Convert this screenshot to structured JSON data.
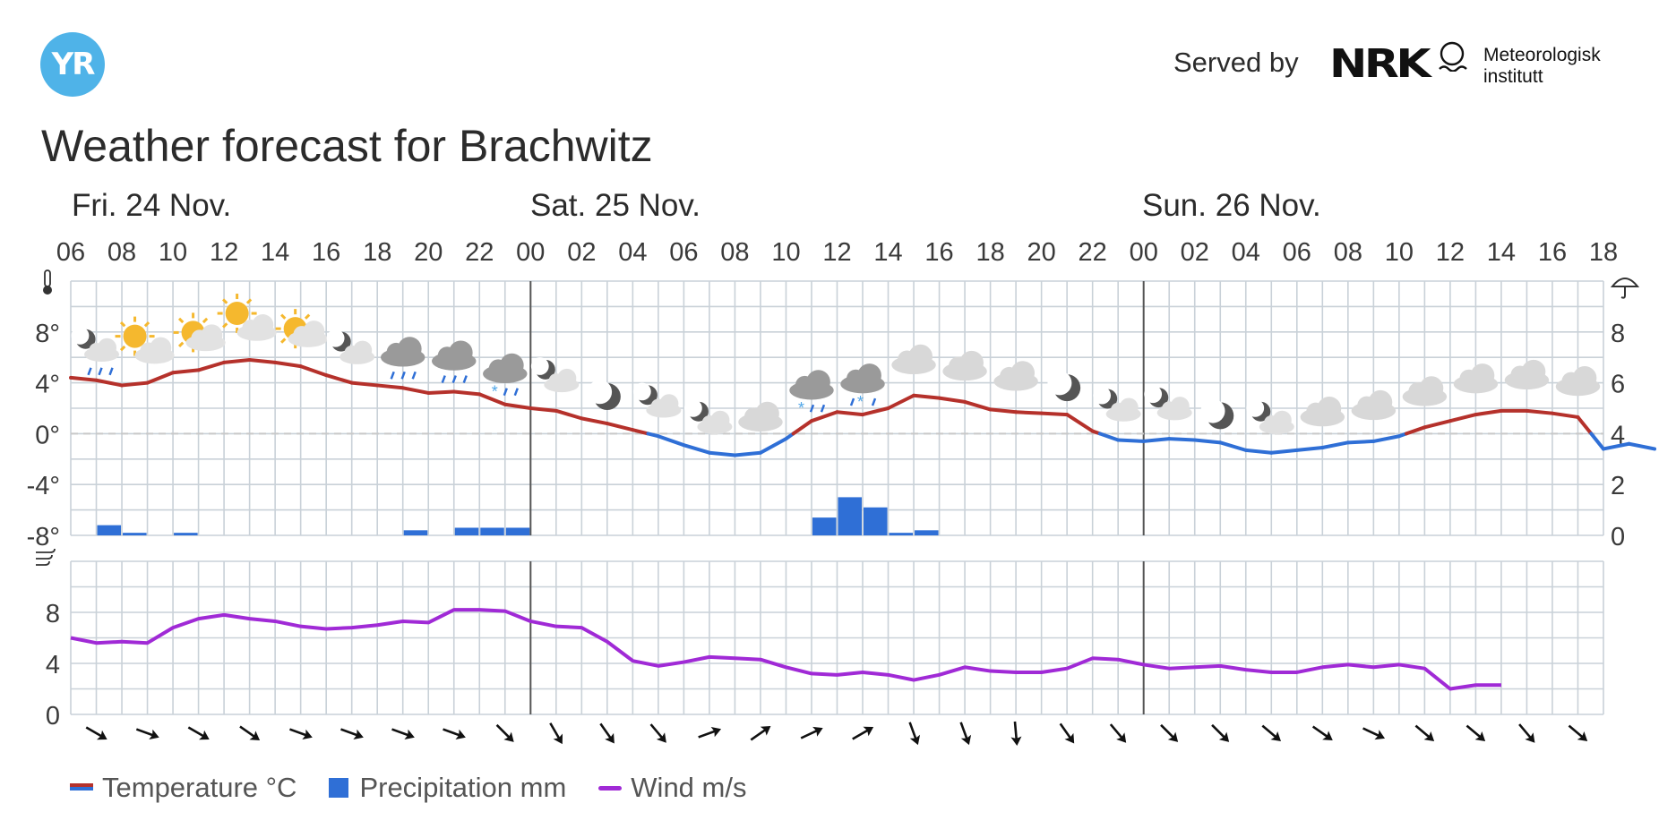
{
  "header": {
    "logo_text": "YR",
    "served_by": "Served by",
    "nrk_text": "NRK",
    "met_line1": "Meteorologisk",
    "met_line2": "institutt"
  },
  "title": "Weather forecast for Brachwitz",
  "days": [
    "Fri. 24 Nov.",
    "Sat. 25 Nov.",
    "Sun. 26 Nov."
  ],
  "legend": {
    "temperature": "Temperature °C",
    "precipitation": "Precipitation mm",
    "wind": "Wind m/s"
  },
  "colors": {
    "temp_warm": "#b5312b",
    "temp_cold": "#2f6fd6",
    "precip": "#2f6fd6",
    "wind": "#a02ad6",
    "grid": "#c9d1d8",
    "logo": "#4fb3e8"
  },
  "chart_data": [
    {
      "type": "line",
      "name": "temperature",
      "x_start": "Fri 06:00",
      "x_step_hours": 1,
      "x_tick_labels": [
        "06",
        "08",
        "10",
        "12",
        "14",
        "16",
        "18",
        "20",
        "22",
        "00",
        "02",
        "04",
        "06",
        "08",
        "10",
        "12",
        "14",
        "16",
        "18",
        "20",
        "22",
        "00",
        "02",
        "04",
        "06",
        "08",
        "10",
        "12",
        "14",
        "16",
        "18"
      ],
      "ylim": [
        -8,
        12
      ],
      "yticks": [
        "8°",
        "4°",
        "0°",
        "-4°",
        "-8°"
      ],
      "series": [
        {
          "name": "Temperature °C",
          "values": [
            4.4,
            4.2,
            3.8,
            4.0,
            4.8,
            5.0,
            5.6,
            5.8,
            5.6,
            5.3,
            4.6,
            4.0,
            3.8,
            3.6,
            3.2,
            3.3,
            3.1,
            2.3,
            2.0,
            1.8,
            1.2,
            0.8,
            0.3,
            -0.2,
            -0.9,
            -1.5,
            -1.7,
            -1.5,
            -0.4,
            1.0,
            1.7,
            1.5,
            2.0,
            3.0,
            2.8,
            2.5,
            1.9,
            1.7,
            1.6,
            1.5,
            0.2,
            -0.5,
            -0.6,
            -0.4,
            -0.5,
            -0.7,
            -1.3,
            -1.5,
            -1.3,
            -1.1,
            -0.7,
            -0.6,
            -0.2,
            0.5,
            1.0,
            1.5,
            1.8,
            1.8,
            1.6,
            1.3,
            -1.2,
            -0.8,
            -1.2
          ]
        }
      ]
    },
    {
      "type": "bar",
      "name": "precipitation",
      "ylim": [
        0,
        10
      ],
      "yticks": [
        "8",
        "6",
        "4",
        "2",
        "0"
      ],
      "hours": [
        1,
        2,
        4,
        13,
        15,
        16,
        17,
        29,
        30,
        31,
        32,
        33
      ],
      "values": [
        0.4,
        0.1,
        0.1,
        0.2,
        0.3,
        0.3,
        0.3,
        0.7,
        1.5,
        1.1,
        0.1,
        0.2
      ]
    },
    {
      "type": "line",
      "name": "wind",
      "ylim": [
        0,
        12
      ],
      "yticks": [
        "8",
        "4",
        "0"
      ],
      "series": [
        {
          "name": "Wind m/s",
          "values": [
            6.0,
            5.6,
            5.7,
            5.6,
            6.8,
            7.5,
            7.8,
            7.5,
            7.3,
            6.9,
            6.7,
            6.8,
            7.0,
            7.3,
            7.2,
            8.2,
            8.2,
            8.1,
            7.3,
            6.9,
            6.8,
            5.7,
            4.2,
            3.8,
            4.1,
            4.5,
            4.4,
            4.3,
            3.7,
            3.2,
            3.1,
            3.3,
            3.1,
            2.7,
            3.1,
            3.7,
            3.4,
            3.3,
            3.3,
            3.6,
            4.4,
            4.3,
            3.9,
            3.6,
            3.7,
            3.8,
            3.5,
            3.3,
            3.3,
            3.7,
            3.9,
            3.7,
            3.9,
            3.6,
            2.0,
            2.3,
            2.3
          ]
        }
      ]
    }
  ],
  "wind_arrows_deg": [
    120,
    110,
    120,
    125,
    110,
    110,
    110,
    110,
    135,
    150,
    145,
    140,
    70,
    55,
    65,
    60,
    160,
    160,
    175,
    145,
    140,
    135,
    135,
    130,
    125,
    115,
    130,
    130,
    140,
    130
  ],
  "weather_icons": [
    {
      "hour": 1,
      "icon": "partly-cloudy-night-rain"
    },
    {
      "hour": 3,
      "icon": "partly-sunny"
    },
    {
      "hour": 5,
      "icon": "sunny-cloud"
    },
    {
      "hour": 7,
      "icon": "partly-sunny"
    },
    {
      "hour": 9,
      "icon": "sunny-cloud"
    },
    {
      "hour": 11,
      "icon": "partly-cloudy-night"
    },
    {
      "hour": 13,
      "icon": "cloud-rain"
    },
    {
      "hour": 15,
      "icon": "cloud-rain"
    },
    {
      "hour": 17,
      "icon": "cloud-sleet"
    },
    {
      "hour": 19,
      "icon": "partly-cloudy-night"
    },
    {
      "hour": 21,
      "icon": "moon"
    },
    {
      "hour": 23,
      "icon": "partly-cloudy-night"
    },
    {
      "hour": 25,
      "icon": "partly-cloudy-night"
    },
    {
      "hour": 27,
      "icon": "cloud"
    },
    {
      "hour": 29,
      "icon": "cloud-sleet"
    },
    {
      "hour": 31,
      "icon": "cloud-snow"
    },
    {
      "hour": 33,
      "icon": "cloud"
    },
    {
      "hour": 35,
      "icon": "cloud"
    },
    {
      "hour": 37,
      "icon": "cloud"
    },
    {
      "hour": 39,
      "icon": "moon"
    },
    {
      "hour": 41,
      "icon": "partly-cloudy-night"
    },
    {
      "hour": 43,
      "icon": "partly-cloudy-night"
    },
    {
      "hour": 45,
      "icon": "moon"
    },
    {
      "hour": 47,
      "icon": "partly-cloudy-night"
    },
    {
      "hour": 49,
      "icon": "cloud"
    },
    {
      "hour": 51,
      "icon": "cloud"
    },
    {
      "hour": 53,
      "icon": "cloud"
    },
    {
      "hour": 55,
      "icon": "cloud"
    },
    {
      "hour": 57,
      "icon": "cloud"
    },
    {
      "hour": 59,
      "icon": "cloud"
    }
  ]
}
